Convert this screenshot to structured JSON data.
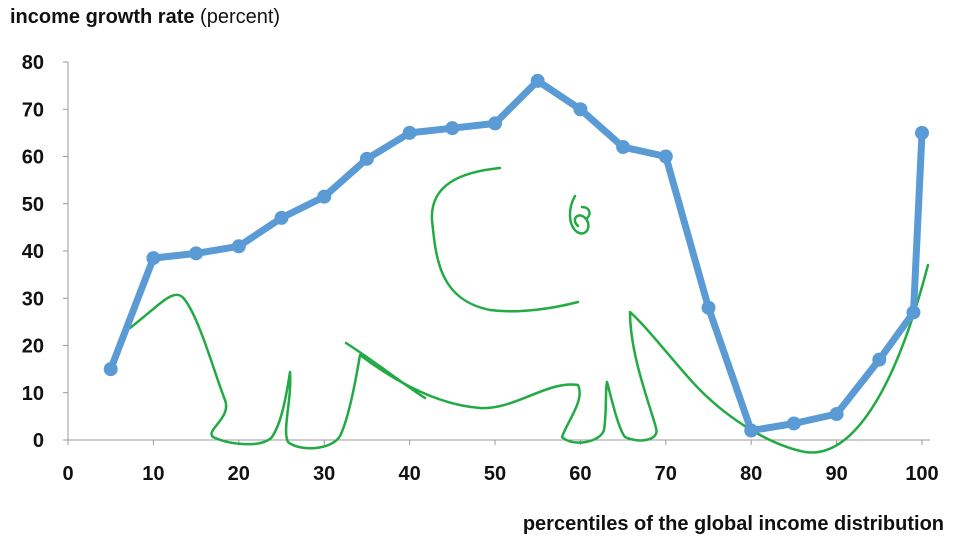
{
  "chart_data": {
    "type": "line",
    "title_bold": "income growth rate",
    "title_rest": "(percent)",
    "xlabel": "percentiles of the global income distribution",
    "xlim": [
      0,
      100
    ],
    "ylim": [
      0,
      80
    ],
    "xticks": [
      0,
      10,
      20,
      30,
      40,
      50,
      60,
      70,
      80,
      90,
      100
    ],
    "yticks": [
      0,
      10,
      20,
      30,
      40,
      50,
      60,
      70,
      80
    ],
    "grid": false,
    "legend": "none",
    "series": [
      {
        "color": "#5b9bd5",
        "x": [
          5,
          10,
          15,
          20,
          25,
          30,
          35,
          40,
          45,
          50,
          55,
          60,
          65,
          70,
          75,
          80,
          85,
          90,
          95,
          99,
          100
        ],
        "y": [
          15,
          38.5,
          39.5,
          41,
          47,
          51.5,
          59.5,
          65,
          66,
          67,
          76,
          70,
          62,
          60,
          28,
          2,
          3.5,
          5.5,
          17,
          27,
          65
        ]
      }
    ],
    "annotation": {
      "type": "hand-drawn elephant outline",
      "color": "#22aa44"
    }
  }
}
